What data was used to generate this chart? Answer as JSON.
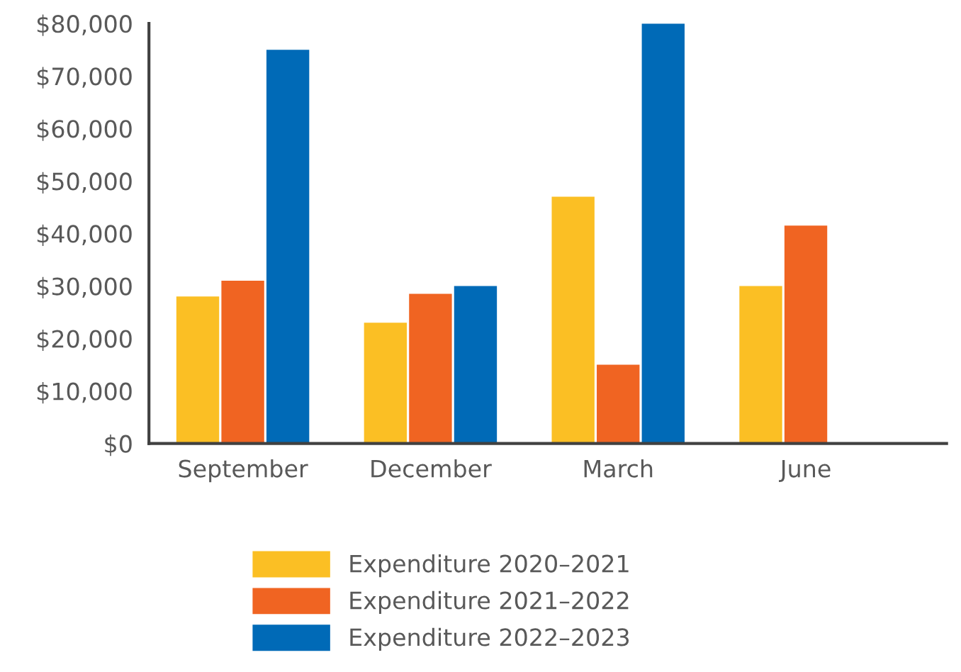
{
  "chart_data": {
    "type": "bar",
    "categories": [
      "September",
      "December",
      "March",
      "June"
    ],
    "series": [
      {
        "name": "Expenditure 2020–2021",
        "color": "#fbbf24",
        "values": [
          28000,
          23000,
          47000,
          30000
        ]
      },
      {
        "name": "Expenditure 2021–2022",
        "color": "#f06422",
        "values": [
          31000,
          28500,
          15000,
          41500
        ]
      },
      {
        "name": "Expenditure 2022–2023",
        "color": "#006ab7",
        "values": [
          75000,
          30000,
          80000,
          null
        ]
      }
    ],
    "ylim": [
      0,
      80000
    ],
    "yticks": [
      {
        "value": 0,
        "label": "$0"
      },
      {
        "value": 10000,
        "label": "$10,000"
      },
      {
        "value": 20000,
        "label": "$20,000"
      },
      {
        "value": 30000,
        "label": "$30,000"
      },
      {
        "value": 40000,
        "label": "$40,000"
      },
      {
        "value": 50000,
        "label": "$50,000"
      },
      {
        "value": 60000,
        "label": "$60,000"
      },
      {
        "value": 70000,
        "label": "$70,000"
      },
      {
        "value": 80000,
        "label": "$80,000"
      }
    ],
    "grid": false,
    "legend": "bottom"
  }
}
